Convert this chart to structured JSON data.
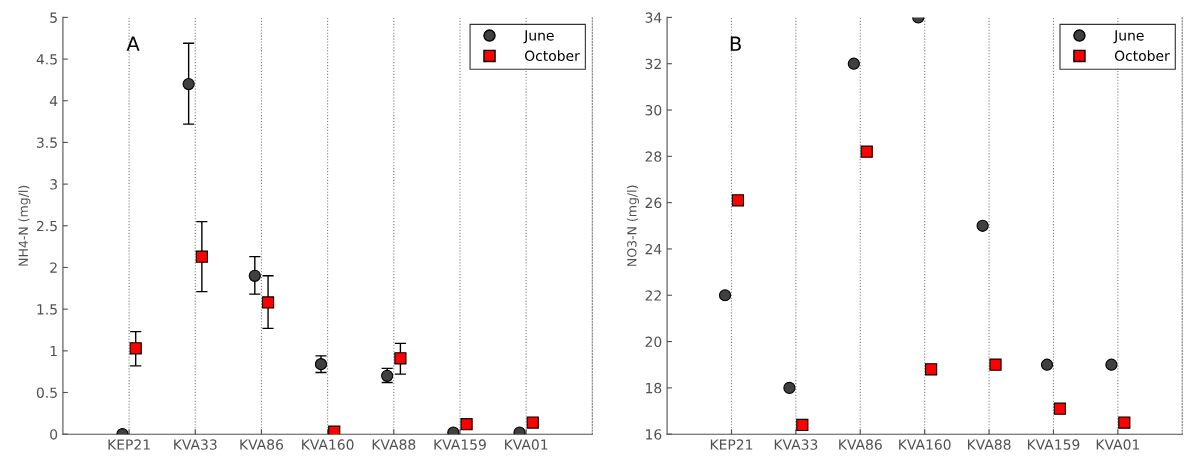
{
  "chart_data": [
    {
      "type": "scatter",
      "annotations": [
        "A"
      ],
      "ylabel": "NH4-N (mg/l)",
      "categories": [
        "KEP21",
        "KVA33",
        "KVA86",
        "KVA160",
        "KVA88",
        "KVA159",
        "KVA01"
      ],
      "ylim": [
        0,
        5
      ],
      "yticks": [
        0,
        0.5,
        1,
        1.5,
        2,
        2.5,
        3,
        3.5,
        4,
        4.5,
        5
      ],
      "grid": "x",
      "legend": "top right",
      "series": [
        {
          "name": "June",
          "color": "#404040",
          "marker": "circle",
          "values": [
            0,
            4.2,
            1.9,
            0.84,
            0.7,
            0.02,
            0.02
          ],
          "errors": [
            null,
            [
              3.72,
              4.69
            ],
            [
              1.68,
              2.13
            ],
            [
              0.74,
              0.94
            ],
            [
              0.62,
              0.79
            ],
            null,
            null
          ]
        },
        {
          "name": "October",
          "color": "#ff0000",
          "marker": "square",
          "values": [
            1.03,
            2.13,
            1.58,
            0.03,
            0.91,
            0.12,
            0.14
          ],
          "errors": [
            [
              0.82,
              1.23
            ],
            [
              1.71,
              2.55
            ],
            [
              1.27,
              1.9
            ],
            null,
            [
              0.72,
              1.09
            ],
            null,
            null
          ]
        }
      ]
    },
    {
      "type": "scatter",
      "annotations": [
        "B"
      ],
      "ylabel": "NO3-N (mg/l)",
      "categories": [
        "KEP21",
        "KVA33",
        "KVA86",
        "KVA160",
        "KVA88",
        "KVA159",
        "KVA01"
      ],
      "ylim": [
        16,
        34
      ],
      "yticks": [
        16,
        18,
        20,
        22,
        24,
        26,
        28,
        30,
        32,
        34
      ],
      "grid": "x",
      "legend": "top right",
      "series": [
        {
          "name": "June",
          "color": "#404040",
          "marker": "circle",
          "values": [
            22,
            18,
            32,
            34,
            25,
            19,
            19
          ]
        },
        {
          "name": "October",
          "color": "#ff0000",
          "marker": "square",
          "values": [
            26.1,
            16.4,
            28.2,
            18.8,
            19,
            17.1,
            16.5
          ]
        }
      ]
    }
  ]
}
